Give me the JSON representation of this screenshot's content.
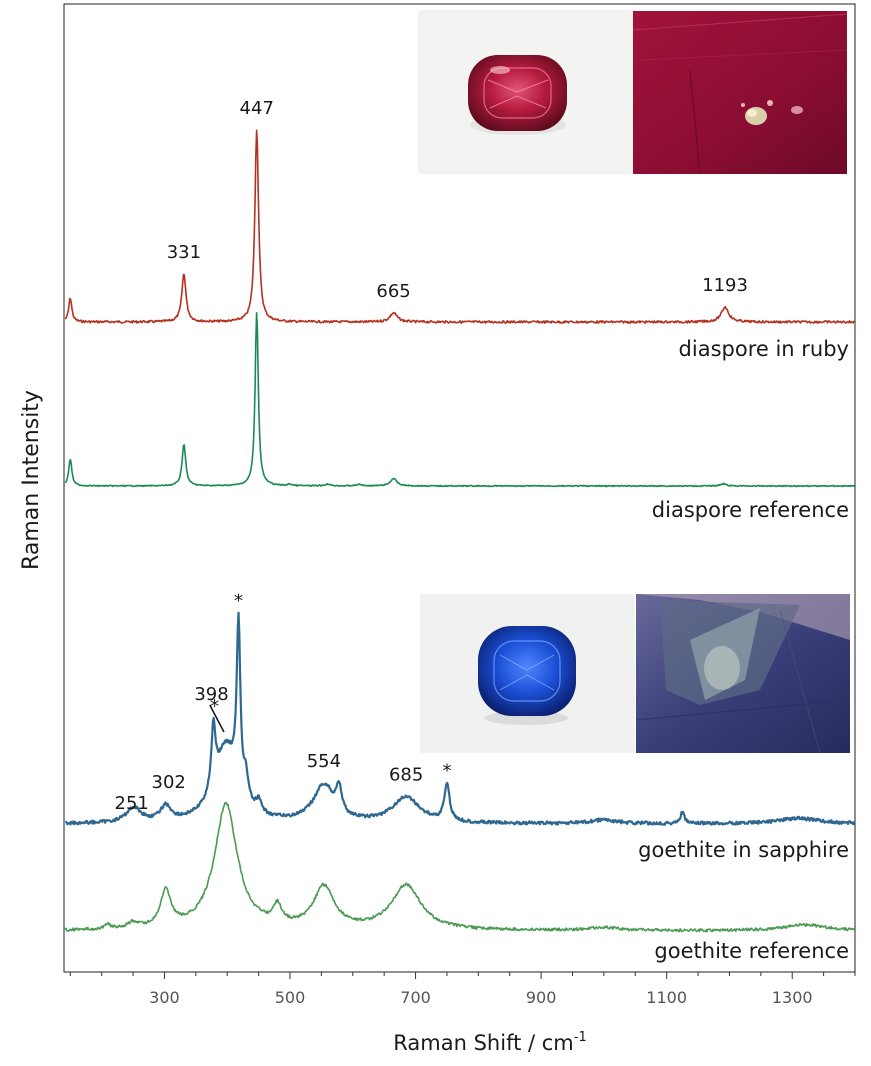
{
  "chart_data": {
    "type": "line",
    "xlabel": "Raman Shift / cm",
    "xlabel_sup": "-1",
    "ylabel": "Raman Intensity",
    "xlim": [
      140,
      1400
    ],
    "x_ticks": [
      300,
      500,
      700,
      900,
      1100,
      1300
    ],
    "minor_tick_step": 50,
    "y_ticks": "none",
    "grid": false,
    "series": [
      {
        "name": "diaspore in ruby",
        "color": "#b5311e",
        "peaks": [
          {
            "x": 150,
            "height": 0.08,
            "width": 3
          },
          {
            "x": 331,
            "height": 0.16,
            "width": 4
          },
          {
            "x": 447,
            "height": 0.64,
            "width": 3.5
          },
          {
            "x": 665,
            "height": 0.03,
            "width": 7
          },
          {
            "x": 1193,
            "height": 0.05,
            "width": 7
          }
        ],
        "peak_labels": [
          {
            "x": 331,
            "text": "331"
          },
          {
            "x": 447,
            "text": "447"
          },
          {
            "x": 665,
            "text": "665"
          },
          {
            "x": 1193,
            "text": "1193"
          }
        ]
      },
      {
        "name": "diaspore reference",
        "color": "#1a8a52",
        "peaks": [
          {
            "x": 150,
            "height": 0.09,
            "width": 3
          },
          {
            "x": 331,
            "height": 0.14,
            "width": 3.5
          },
          {
            "x": 447,
            "height": 0.58,
            "width": 3
          },
          {
            "x": 500,
            "height": 0.005,
            "width": 4
          },
          {
            "x": 560,
            "height": 0.006,
            "width": 5
          },
          {
            "x": 610,
            "height": 0.005,
            "width": 5
          },
          {
            "x": 665,
            "height": 0.025,
            "width": 6
          },
          {
            "x": 1190,
            "height": 0.008,
            "width": 5
          }
        ],
        "peak_labels": []
      },
      {
        "name": "goethite in sapphire",
        "color": "#2e6891",
        "peaks": [
          {
            "x": 251,
            "height": 0.04,
            "width": 14
          },
          {
            "x": 302,
            "height": 0.04,
            "width": 10
          },
          {
            "x": 378,
            "height": 0.17,
            "width": 4
          },
          {
            "x": 398,
            "height": 0.2,
            "width": 22
          },
          {
            "x": 418,
            "height": 0.45,
            "width": 3.5
          },
          {
            "x": 430,
            "height": 0.06,
            "width": 4
          },
          {
            "x": 450,
            "height": 0.03,
            "width": 5
          },
          {
            "x": 554,
            "height": 0.1,
            "width": 20
          },
          {
            "x": 578,
            "height": 0.07,
            "width": 5
          },
          {
            "x": 685,
            "height": 0.07,
            "width": 26
          },
          {
            "x": 750,
            "height": 0.1,
            "width": 5
          },
          {
            "x": 1125,
            "height": 0.03,
            "width": 4
          },
          {
            "x": 1000,
            "height": 0.01,
            "width": 25
          },
          {
            "x": 1310,
            "height": 0.015,
            "width": 40
          }
        ],
        "peak_labels": [
          {
            "x": 251,
            "text": "251"
          },
          {
            "x": 302,
            "text": "302"
          },
          {
            "x": 398,
            "text": "398"
          },
          {
            "x": 554,
            "text": "554"
          },
          {
            "x": 685,
            "text": "685"
          }
        ],
        "asterisks": [
          380,
          418,
          750
        ]
      },
      {
        "name": "goethite reference",
        "color": "#4a9a52",
        "peaks": [
          {
            "x": 210,
            "height": 0.015,
            "width": 6
          },
          {
            "x": 250,
            "height": 0.02,
            "width": 10
          },
          {
            "x": 302,
            "height": 0.12,
            "width": 10
          },
          {
            "x": 398,
            "height": 0.42,
            "width": 22
          },
          {
            "x": 480,
            "height": 0.06,
            "width": 8
          },
          {
            "x": 554,
            "height": 0.14,
            "width": 20
          },
          {
            "x": 685,
            "height": 0.15,
            "width": 28
          },
          {
            "x": 1000,
            "height": 0.01,
            "width": 30
          },
          {
            "x": 1320,
            "height": 0.02,
            "width": 40
          }
        ],
        "peak_labels": []
      }
    ]
  },
  "photos": {
    "ruby_gem": "ruby-gem-photo",
    "ruby_inclusion": "diaspore-inclusion-photo",
    "sapphire_gem": "sapphire-gem-photo",
    "sapphire_inclusion": "goethite-inclusion-photo"
  }
}
